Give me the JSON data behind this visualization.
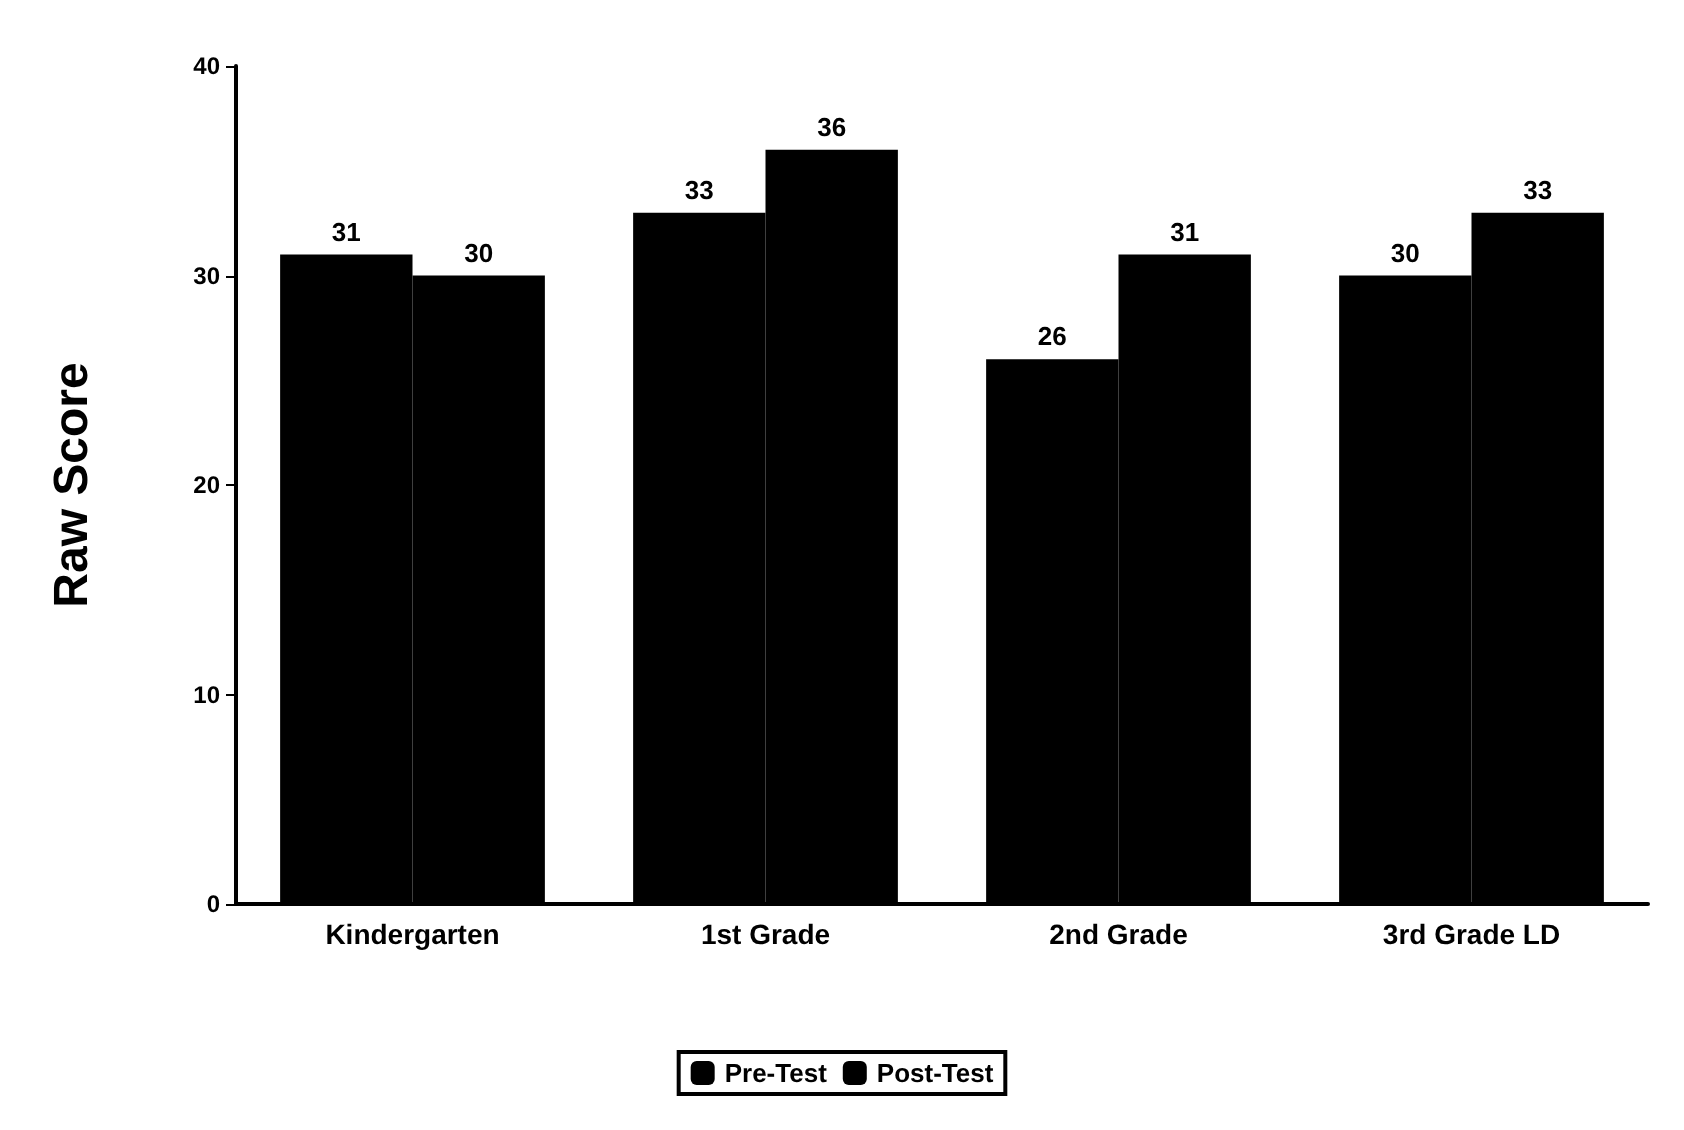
{
  "chart_data": {
    "type": "bar",
    "ylabel": "Raw Score",
    "categories": [
      "Kindergarten",
      "1st Grade",
      "2nd Grade",
      "3rd Grade LD"
    ],
    "series": [
      {
        "name": "Pre-Test",
        "color": "#000000",
        "values": [
          31,
          33,
          26,
          30
        ]
      },
      {
        "name": "Post-Test",
        "color": "#000000",
        "values": [
          30,
          36,
          31,
          33
        ]
      }
    ],
    "ylim": [
      0,
      40
    ],
    "yticks": [
      0,
      10,
      20,
      30,
      40
    ],
    "grid": false,
    "legend": "bottom",
    "data_labels": true
  }
}
